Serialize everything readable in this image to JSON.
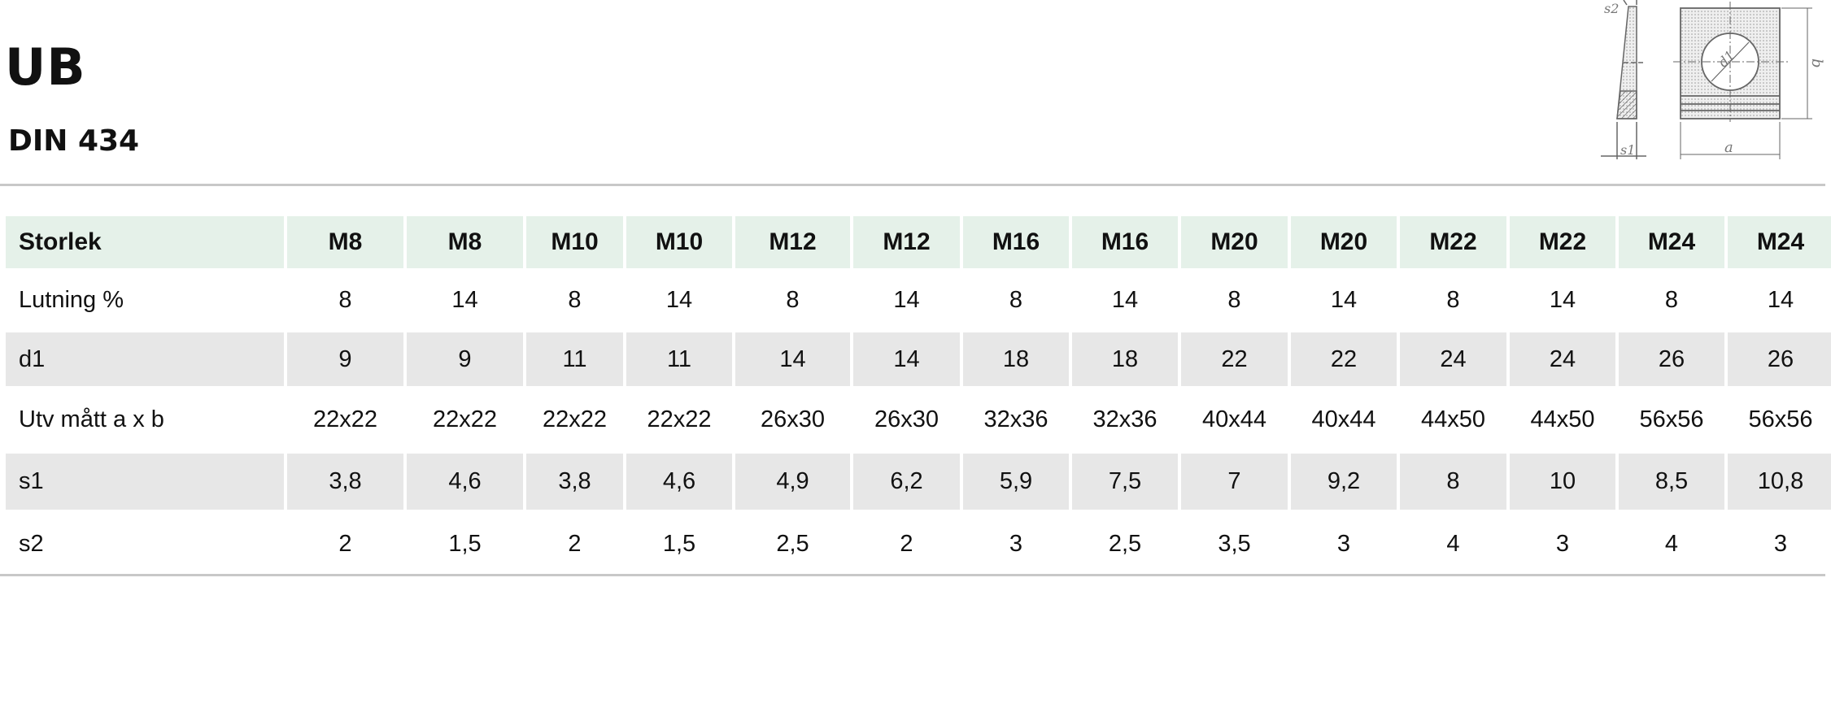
{
  "title": "UB",
  "subtitle": "DIN 434",
  "drawing": {
    "labels": {
      "s2": "s2",
      "s1": "s1",
      "d1": "d1",
      "a": "a",
      "b": "b"
    }
  },
  "table": {
    "header": {
      "label": "Storlek",
      "values": [
        "M8",
        "M8",
        "M10",
        "M10",
        "M12",
        "M12",
        "M16",
        "M16",
        "M20",
        "M20",
        "M22",
        "M22",
        "M24",
        "M24"
      ]
    },
    "rows": [
      {
        "label": "Lutning %",
        "values": [
          "8",
          "14",
          "8",
          "14",
          "8",
          "14",
          "8",
          "14",
          "8",
          "14",
          "8",
          "14",
          "8",
          "14"
        ]
      },
      {
        "label": "d1",
        "values": [
          "9",
          "9",
          "11",
          "11",
          "14",
          "14",
          "18",
          "18",
          "22",
          "22",
          "24",
          "24",
          "26",
          "26"
        ]
      },
      {
        "label": "Utv mått a x b",
        "values": [
          "22x22",
          "22x22",
          "22x22",
          "22x22",
          "26x30",
          "26x30",
          "32x36",
          "32x36",
          "40x44",
          "40x44",
          "44x50",
          "44x50",
          "56x56",
          "56x56"
        ]
      },
      {
        "label": "s1",
        "values": [
          "3,8",
          "4,6",
          "3,8",
          "4,6",
          "4,9",
          "6,2",
          "5,9",
          "7,5",
          "7",
          "9,2",
          "8",
          "10",
          "8,5",
          "10,8"
        ]
      },
      {
        "label": "s2",
        "values": [
          "2",
          "1,5",
          "2",
          "1,5",
          "2,5",
          "2",
          "3",
          "2,5",
          "3,5",
          "3",
          "4",
          "3",
          "4",
          "3"
        ]
      }
    ]
  }
}
